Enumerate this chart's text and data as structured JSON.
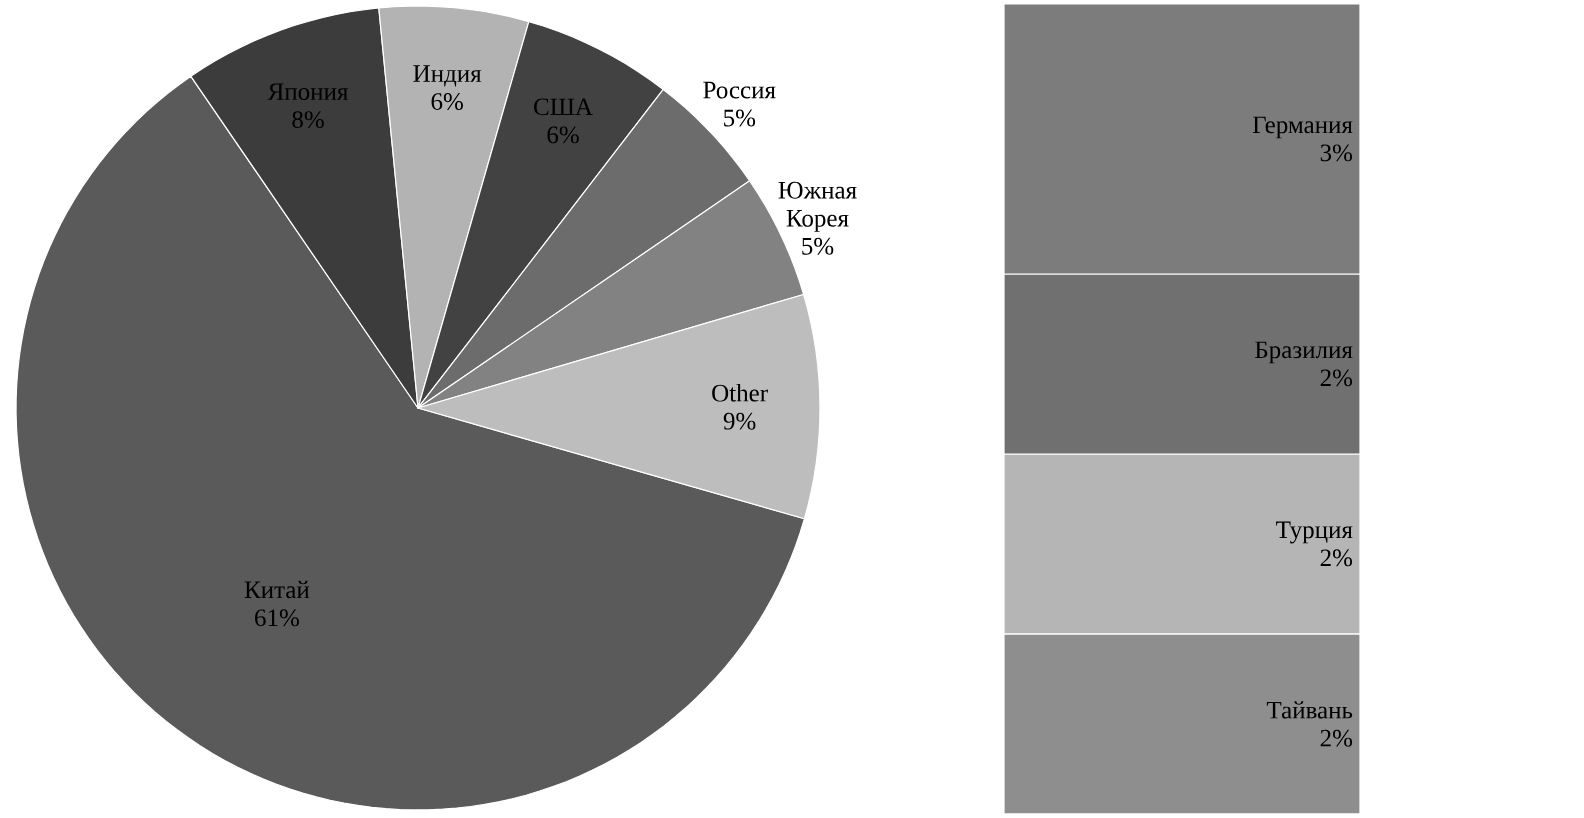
{
  "chart_data": [
    {
      "type": "pie",
      "categories": [
        "Китай",
        "Япония",
        "Индия",
        "США",
        "Россия",
        "Южная Корея",
        "Other"
      ],
      "values": [
        61,
        8,
        6,
        6,
        5,
        5,
        9
      ],
      "value_labels": [
        "61%",
        "8%",
        "6%",
        "6%",
        "5%",
        "5%",
        "9%"
      ],
      "colors": [
        "#5a5a5a",
        "#3c3c3c",
        "#b3b3b3",
        "#424242",
        "#6c6c6c",
        "#828282",
        "#bdbdbd"
      ]
    },
    {
      "type": "bar",
      "stacked": true,
      "categories": [
        null
      ],
      "series": [
        {
          "name": "Тайвань",
          "color": "#8e8e8e",
          "values": [
            2
          ],
          "value_labels": [
            "2%"
          ]
        },
        {
          "name": "Турция",
          "color": "#b5b5b5",
          "values": [
            2
          ],
          "value_labels": [
            "2%"
          ]
        },
        {
          "name": "Бразилия",
          "color": "#707070",
          "values": [
            2
          ],
          "value_labels": [
            "2%"
          ]
        },
        {
          "name": "Германия",
          "color": "#7c7c7c",
          "values": [
            3
          ],
          "value_labels": [
            "3%"
          ]
        }
      ]
    }
  ]
}
